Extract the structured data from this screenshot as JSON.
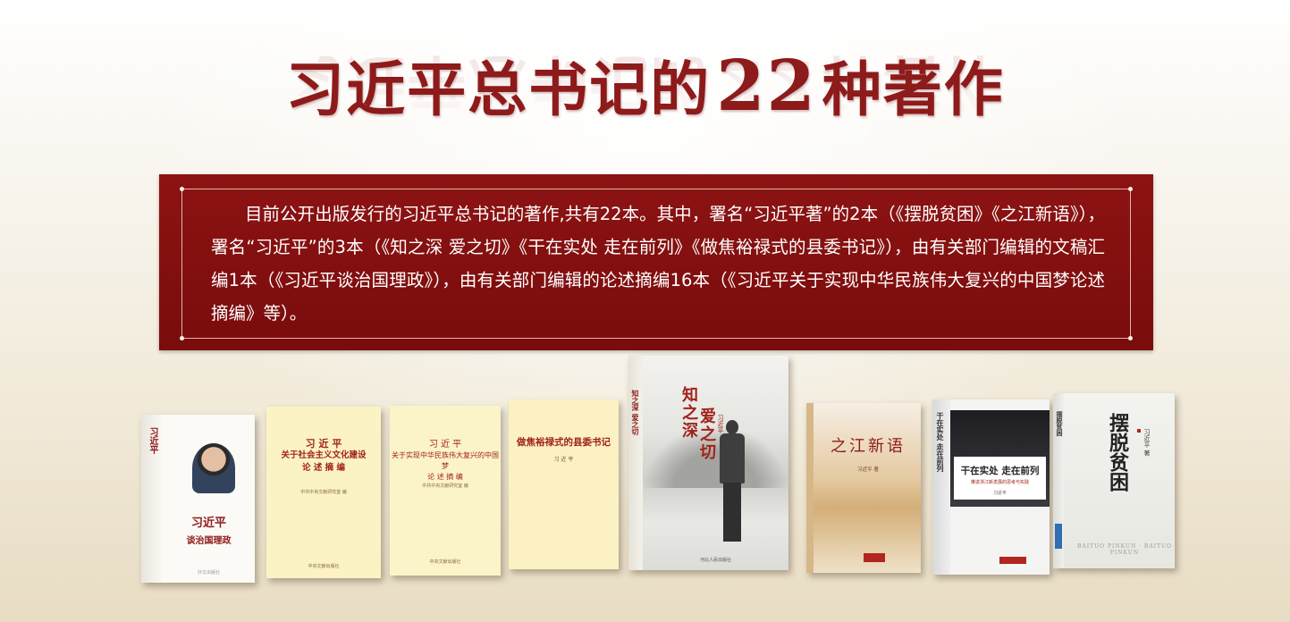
{
  "title": {
    "prefix": "习近平总书记的",
    "number": "22",
    "suffix": "种著作"
  },
  "intro": {
    "text": "目前公开出版发行的习近平总书记的著作,共有22本。其中，署名“习近平著”的2本（《摆脱贫困》《之江新语》），署名“习近平”的3本（《知之深 爱之切》《干在实处 走在前列》《做焦裕禄式的县委书记》），由有关部门编辑的文稿汇编1本（《习近平谈治国理政》），由有关部门编辑的论述摘编16本（《习近平关于实现中华民族伟大复兴的中国梦论述摘编》等）。"
  },
  "books": [
    {
      "spine": "习近平",
      "author": "习近平",
      "title": "谈治国理政",
      "publisher": "外文出版社"
    },
    {
      "author": "习 近 平",
      "title_line1": "关于社会主义文化建设",
      "title_line2": "论 述 摘 编",
      "editor": "中共中央文献研究室 编",
      "publisher": "中央文献出版社"
    },
    {
      "author": "习 近 平",
      "title_line1": "关于实现中华民族伟大复兴的中国梦",
      "title_line2": "论 述 摘 编",
      "editor": "中共中央文献研究室 编",
      "publisher": "中央文献出版社"
    },
    {
      "title": "做焦裕禄式的县委书记",
      "author": "习 近 平"
    },
    {
      "spine": "知之深 爱之切",
      "title_line1": "知之深",
      "title_line2": "爱之切",
      "author": "习近平",
      "publisher": "河北人民出版社"
    },
    {
      "title": "之江新语",
      "author": "习近平 著"
    },
    {
      "spine": "干在实处 走在前列",
      "title": "干在实处 走在前列",
      "subtitle": "推进浙江新发展的思考与实践",
      "author": "习近平"
    },
    {
      "spine": "摆脱贫困",
      "title": "摆脱贫困",
      "author": "习近平 著",
      "footer": "BAITUO PINKUN · BAITUO PINKUN"
    }
  ]
}
